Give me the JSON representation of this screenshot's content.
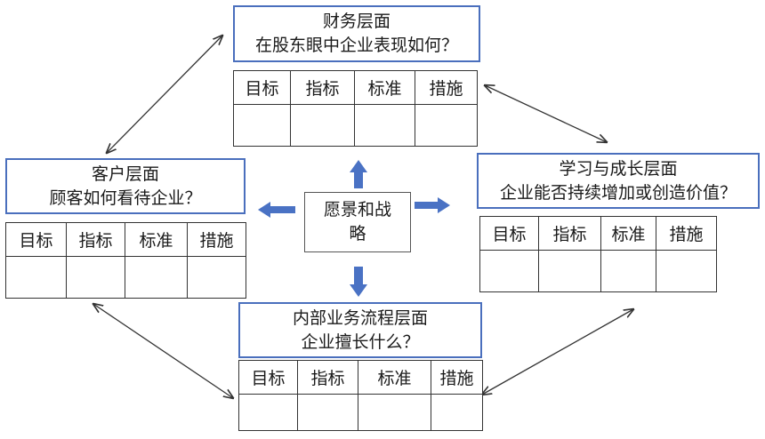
{
  "center": {
    "text": "愿景和战略"
  },
  "columns": [
    "目标",
    "指标",
    "标准",
    "措施"
  ],
  "financial": {
    "title": "财务层面",
    "question": "在股东眼中企业表现如何？"
  },
  "customer": {
    "title": "客户层面",
    "question": "顾客如何看待企业？"
  },
  "learning": {
    "title": "学习与成长层面",
    "question": "企业能否持续增加或创造价值？"
  },
  "internal": {
    "title": "内部业务流程层面",
    "question": "企业擅长什么？"
  },
  "colors": {
    "border_blue": "#4a6fbd",
    "arrow_blue": "#4a72c4",
    "line": "#333333"
  }
}
